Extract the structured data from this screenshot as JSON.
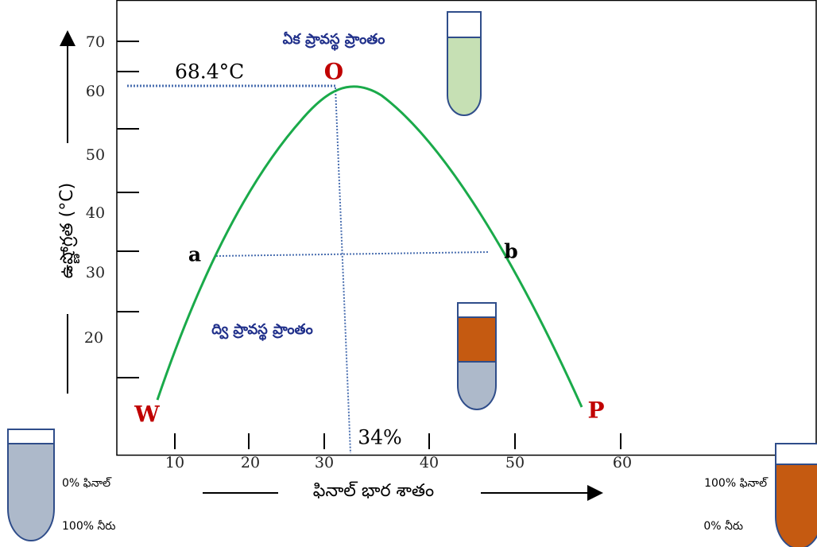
{
  "diagram": {
    "regions": {
      "one_phase": "ఏక ప్రావస్థ ప్రాంతం",
      "two_phase": "ద్వి ప్రావస్థ ప్రాంతం"
    },
    "critical_temperature": "68.4°C",
    "critical_composition": "34%",
    "points": {
      "O": "O",
      "a": "a",
      "b": "b",
      "W": "W",
      "P": "P"
    },
    "y_axis": {
      "label": "ఉష్ణోగ్రత (°C)",
      "ticks": [
        "70",
        "60",
        "50",
        "40",
        "30",
        "20"
      ]
    },
    "x_axis": {
      "label": "ఫినాల్ భార శాతం",
      "ticks": [
        "10",
        "20",
        "30",
        "40",
        "50",
        "60"
      ]
    },
    "left_tube": {
      "phenol": "0% ఫినాల్",
      "water": "100% నీరు"
    },
    "right_tube": {
      "phenol": "100% ఫినాల్",
      "water": "0% నీరు"
    }
  }
}
